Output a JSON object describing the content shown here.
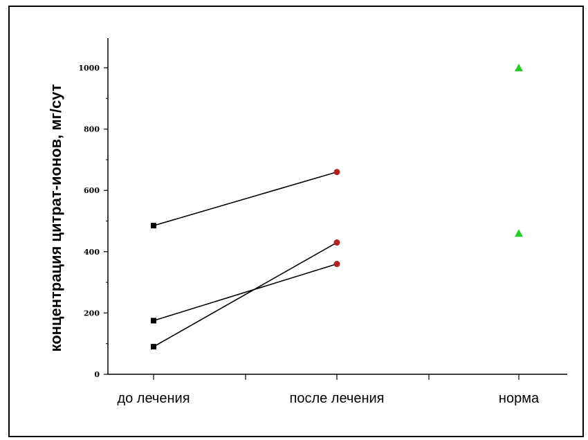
{
  "chart_data": {
    "type": "line",
    "title": "",
    "xlabel": "",
    "ylabel": "концентрация цитрат-ионов, мг/сут",
    "categories": [
      "до лечения",
      "после лечения",
      "норма"
    ],
    "ylim": [
      0,
      1100
    ],
    "yticks": [
      "0",
      "200",
      "400",
      "600",
      "800",
      "1000"
    ],
    "grid": false,
    "series": [
      {
        "values": [
          485,
          660,
          null
        ],
        "marker": "square-circle",
        "color": "#000000"
      },
      {
        "values": [
          175,
          360,
          null
        ],
        "marker": "square-circle",
        "color": "#000000"
      },
      {
        "values": [
          90,
          430,
          null
        ],
        "marker": "square-circle",
        "color": "#000000"
      },
      {
        "values": [
          null,
          null,
          1000
        ],
        "marker": "triangle",
        "color": "#22cc22"
      },
      {
        "values": [
          null,
          null,
          460
        ],
        "marker": "triangle",
        "color": "#22cc22"
      }
    ],
    "colors": {
      "before_marker": "#000000",
      "after_marker": "#b22222",
      "norm_marker": "#22cc22",
      "line": "#000000"
    }
  }
}
